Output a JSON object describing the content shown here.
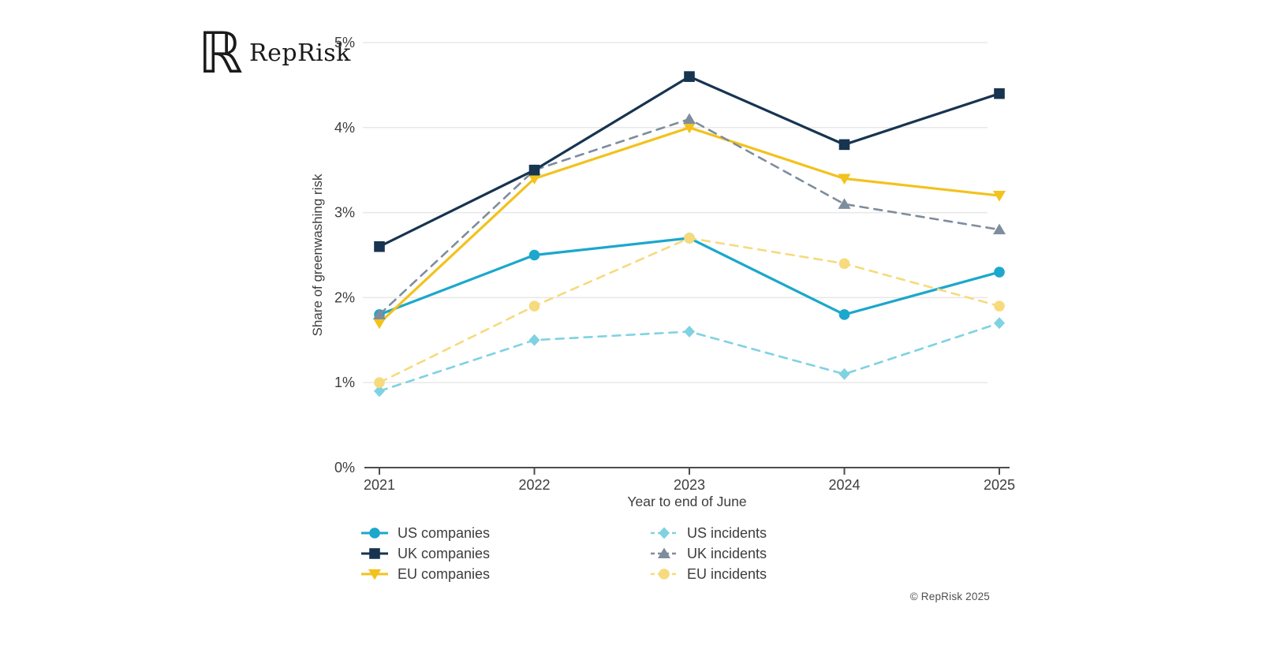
{
  "header": {
    "logo_monogram": "ℝ",
    "logo_text": "RepRisk"
  },
  "footer": {
    "copyright": "© RepRisk 2025"
  },
  "chart_data": {
    "type": "line",
    "title": "",
    "x": [
      "2021",
      "2022",
      "2023",
      "2024",
      "2025"
    ],
    "xlabel": "Year to end of June",
    "ylabel": "Share of greenwashing risk",
    "ylim": [
      0,
      5
    ],
    "yticks": [
      0,
      1,
      2,
      3,
      4,
      5
    ],
    "ytick_labels": [
      "0%",
      "1%",
      "2%",
      "3%",
      "4%",
      "5%"
    ],
    "grid": "horizontal",
    "legend_position": "bottom",
    "series": [
      {
        "name": "US companies",
        "values": [
          1.8,
          2.5,
          2.7,
          1.8,
          2.3
        ],
        "color": "#1ca7cc",
        "marker": "circle",
        "dash": false
      },
      {
        "name": "UK companies",
        "values": [
          2.6,
          3.5,
          4.6,
          3.8,
          4.4
        ],
        "color": "#173450",
        "marker": "square",
        "dash": false
      },
      {
        "name": "EU companies",
        "values": [
          1.7,
          3.4,
          4.0,
          3.4,
          3.2
        ],
        "color": "#f2c21d",
        "marker": "triangle-down",
        "dash": false
      },
      {
        "name": "US incidents",
        "values": [
          0.9,
          1.5,
          1.6,
          1.1,
          1.7
        ],
        "color": "#7fd2e2",
        "marker": "diamond",
        "dash": true
      },
      {
        "name": "UK incidents",
        "values": [
          1.8,
          3.5,
          4.1,
          3.1,
          2.8
        ],
        "color": "#7e8d9d",
        "marker": "triangle-up",
        "dash": true
      },
      {
        "name": "EU incidents",
        "values": [
          1.0,
          1.9,
          2.7,
          2.4,
          1.9
        ],
        "color": "#f6da7d",
        "marker": "circle",
        "dash": true
      }
    ],
    "colors": {
      "grid": "#e8e8e8",
      "axis": "#4d4d4d",
      "text": "#3d3d3d"
    }
  }
}
